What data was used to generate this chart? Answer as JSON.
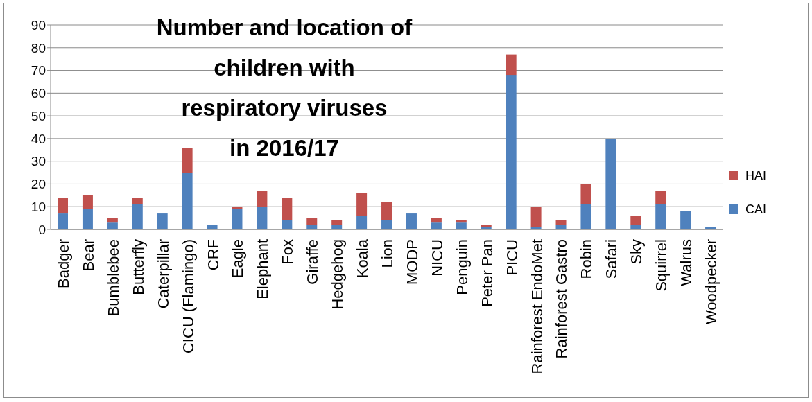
{
  "chart_data": {
    "type": "bar",
    "title": "Number and location of\nchildren with\nrespiratory viruses\nin 2016/17",
    "categories": [
      "Badger",
      "Bear",
      "Bumblebee",
      "Butterfly",
      "Caterpillar",
      "CICU (Flamingo)",
      "CRF",
      "Eagle",
      "Elephant",
      "Fox",
      "Giraffe",
      "Hedgehog",
      "Koala",
      "Lion",
      "MODP",
      "NICU",
      "Penguin",
      "Peter Pan",
      "PICU",
      "Rainforest EndoMet",
      "Rainforest Gastro",
      "Robin",
      "Safari",
      "Sky",
      "Squirrel",
      "Walrus",
      "Woodpecker"
    ],
    "series": [
      {
        "name": "CAI",
        "color": "#4f81bd",
        "values": [
          7,
          9,
          3,
          11,
          7,
          25,
          2,
          9,
          10,
          4,
          2,
          2,
          6,
          4,
          7,
          3,
          3,
          1,
          68,
          1,
          2,
          11,
          40,
          2,
          11,
          8,
          1
        ]
      },
      {
        "name": "HAI",
        "color": "#c0504d",
        "values": [
          7,
          6,
          2,
          3,
          0,
          11,
          0,
          1,
          7,
          10,
          3,
          2,
          10,
          8,
          0,
          2,
          1,
          1,
          9,
          9,
          2,
          9,
          0,
          4,
          6,
          0,
          0
        ]
      }
    ],
    "stacked": true,
    "ylim": [
      0,
      90
    ],
    "yticks": [
      0,
      10,
      20,
      30,
      40,
      50,
      60,
      70,
      80,
      90
    ],
    "grid": "y",
    "legend": "right"
  }
}
